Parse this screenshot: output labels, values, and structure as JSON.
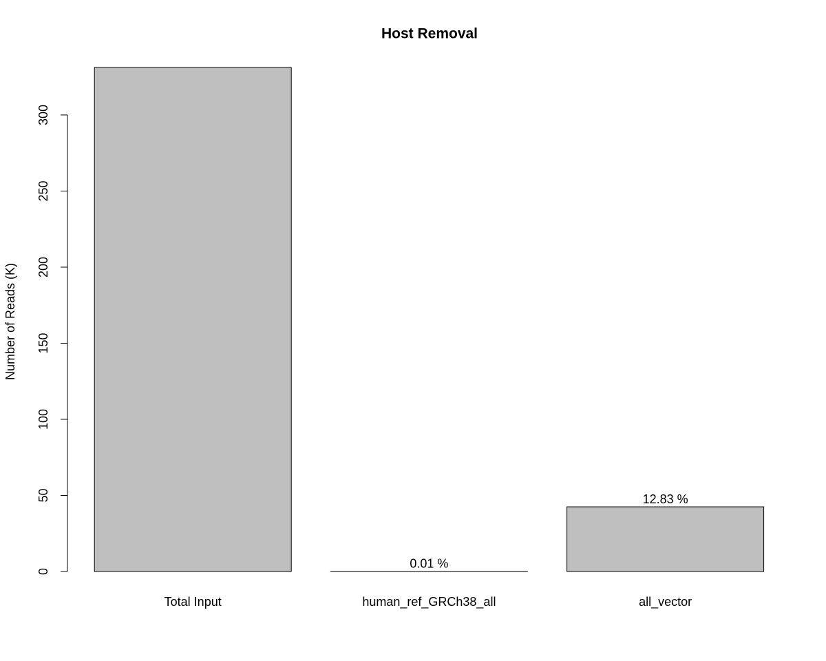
{
  "chart_data": {
    "type": "bar",
    "title": "Host Removal",
    "y_label": "Number of Reads (K)",
    "categories": [
      "Total Input",
      "human_ref_GRCh38_all",
      "all_vector"
    ],
    "values": [
      331.2,
      0.033,
      42.5
    ],
    "bar_annotations": [
      null,
      "0.01 %",
      "12.83 %"
    ],
    "color": "#bebebe",
    "ylim": [
      0,
      331.2
    ],
    "yticks": [
      0,
      50,
      100,
      150,
      200,
      250,
      300
    ],
    "grid": false
  }
}
